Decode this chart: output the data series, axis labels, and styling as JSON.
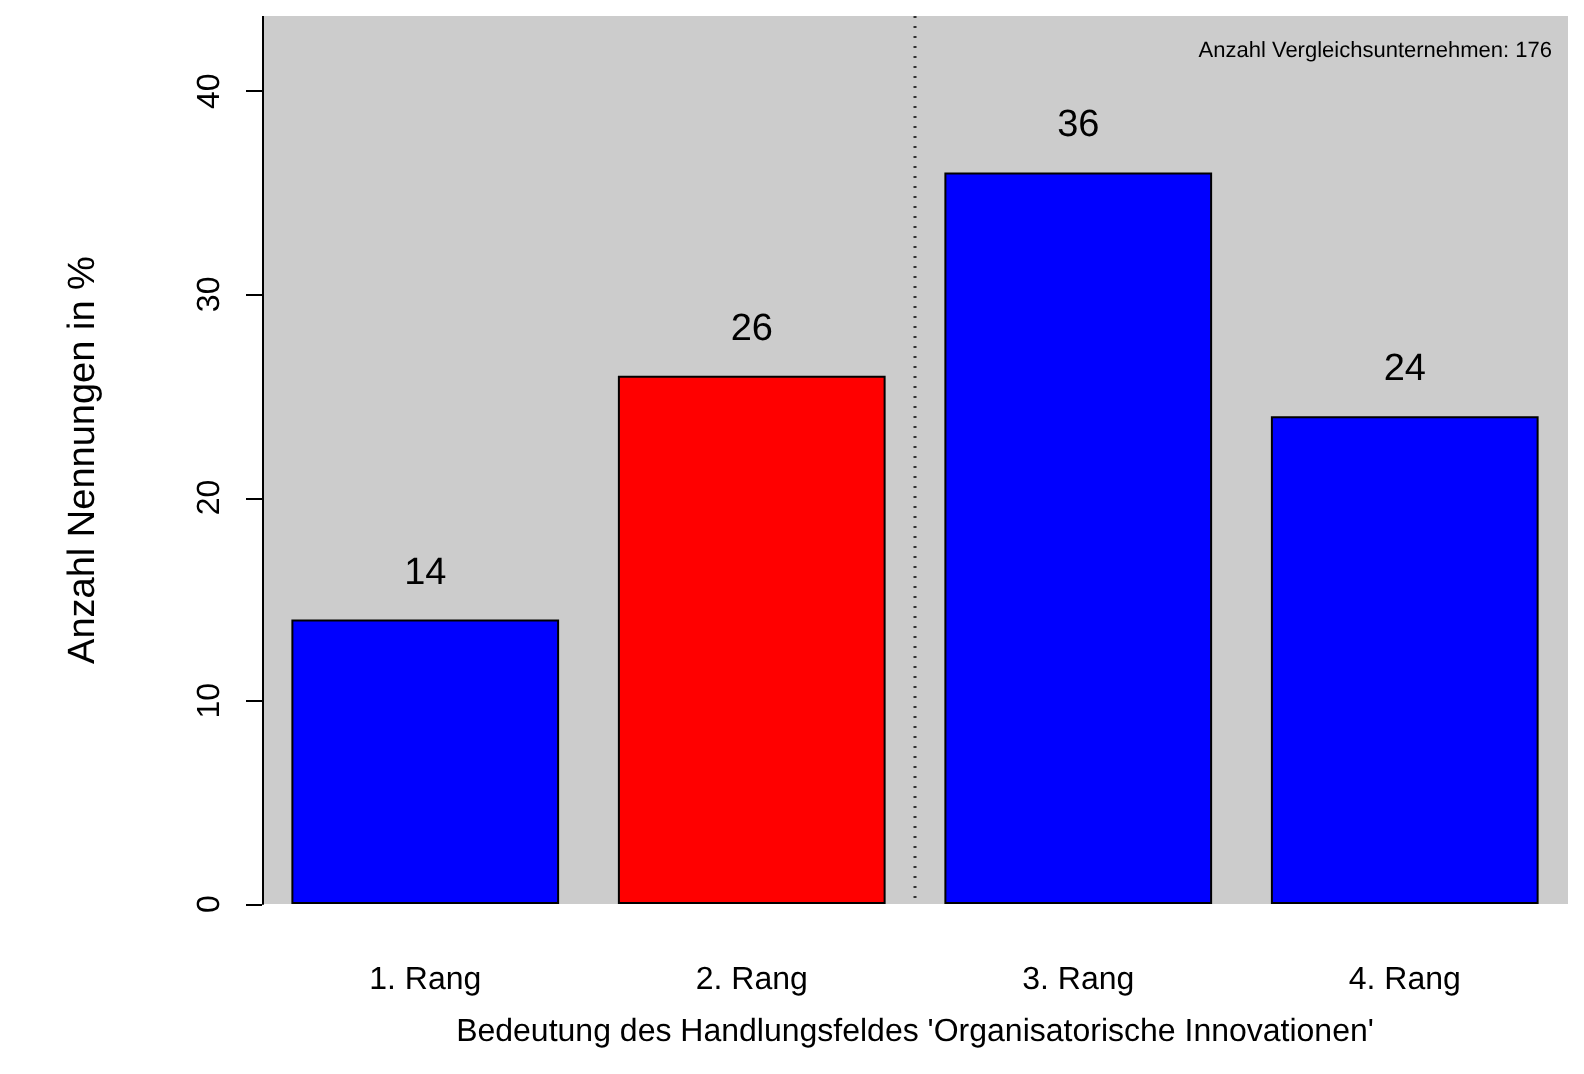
{
  "chart_data": {
    "type": "bar",
    "categories": [
      "1. Rang",
      "2. Rang",
      "3. Rang",
      "4. Rang"
    ],
    "values": [
      14,
      26,
      36,
      24
    ],
    "colors": [
      "#0000ff",
      "#ff0000",
      "#0000ff",
      "#0000ff"
    ],
    "xlabel": "Bedeutung des Handlungsfeldes 'Organisatorische Innovationen'",
    "ylabel": "Anzahl Nennungen in %",
    "ylim": [
      0,
      43.7
    ],
    "yticks": [
      0,
      10,
      20,
      30,
      40
    ],
    "data_labels": true,
    "annotations": [
      "Anzahl Vergleichsunternehmen: 176"
    ]
  }
}
